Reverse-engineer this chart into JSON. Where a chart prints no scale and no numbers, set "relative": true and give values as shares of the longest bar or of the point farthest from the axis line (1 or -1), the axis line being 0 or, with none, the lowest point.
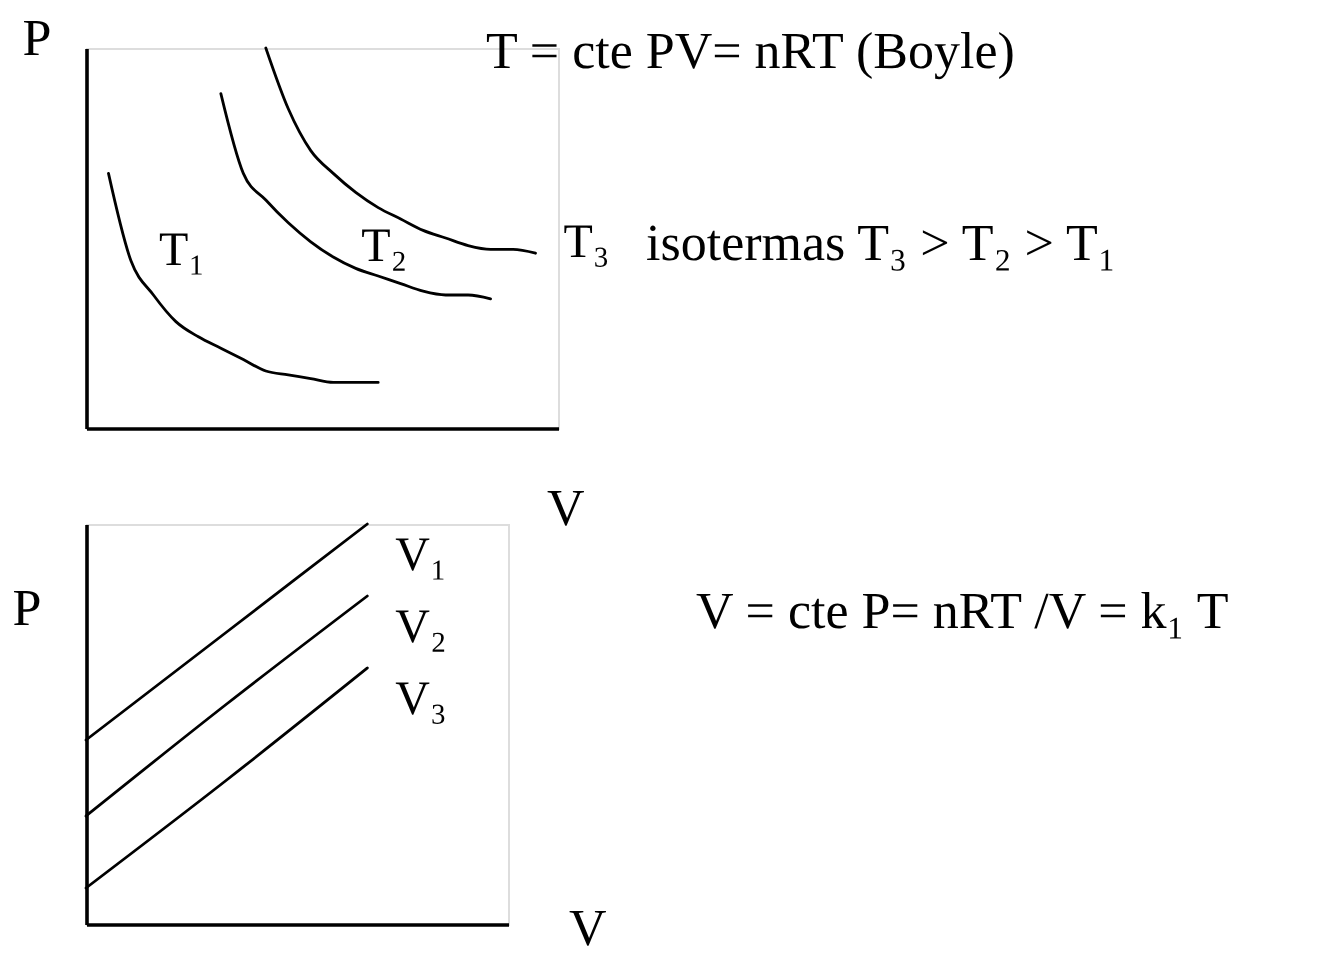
{
  "chart_data": [
    {
      "type": "line",
      "relative": true,
      "xlabel": "V",
      "ylabel": "P",
      "categories": [
        null,
        null,
        null,
        null,
        null,
        null,
        null,
        null,
        null,
        null,
        null,
        null,
        null,
        null,
        null,
        null,
        null,
        null,
        null,
        null
      ],
      "series": [
        {
          "name": "T₁",
          "color": "#000000",
          "values": [
            0.67,
            0.44,
            0.35,
            0.28,
            0.24,
            0.21,
            0.18,
            0.15,
            0.14,
            0.13,
            0.12,
            0.12,
            0.12,
            null,
            null,
            null,
            null,
            null,
            null,
            null
          ]
        },
        {
          "name": "T₂",
          "color": "#000000",
          "values": [
            null,
            null,
            null,
            null,
            null,
            0.88,
            0.67,
            0.6,
            0.54,
            0.49,
            0.45,
            0.42,
            0.4,
            0.38,
            0.36,
            0.35,
            0.35,
            0.34,
            null,
            null
          ]
        },
        {
          "name": "T₃",
          "color": "#000000",
          "values": [
            null,
            null,
            null,
            null,
            null,
            null,
            null,
            1.0,
            0.84,
            0.73,
            0.67,
            0.62,
            0.58,
            0.55,
            0.52,
            0.5,
            0.48,
            0.47,
            0.47,
            0.46
          ]
        }
      ],
      "annotations": [
        "T = cte   PV= nRT  (Boyle)",
        "isotermas   T₃ > T₂ > T₁"
      ]
    },
    {
      "type": "line",
      "relative": true,
      "xlabel": "V",
      "ylabel": "P",
      "categories": [
        null,
        null,
        null,
        null
      ],
      "series": [
        {
          "name": "V₁",
          "color": "#000000",
          "values": [
            0.46,
            0.73,
            1.0,
            null
          ]
        },
        {
          "name": "V₂",
          "color": "#000000",
          "values": [
            0.27,
            0.55,
            0.82,
            null
          ]
        },
        {
          "name": "V₃",
          "color": "#000000",
          "values": [
            0.09,
            0.36,
            0.64,
            null
          ]
        }
      ],
      "annotations": [
        "V = cte   P= nRT /V = k₁ T"
      ]
    }
  ]
}
